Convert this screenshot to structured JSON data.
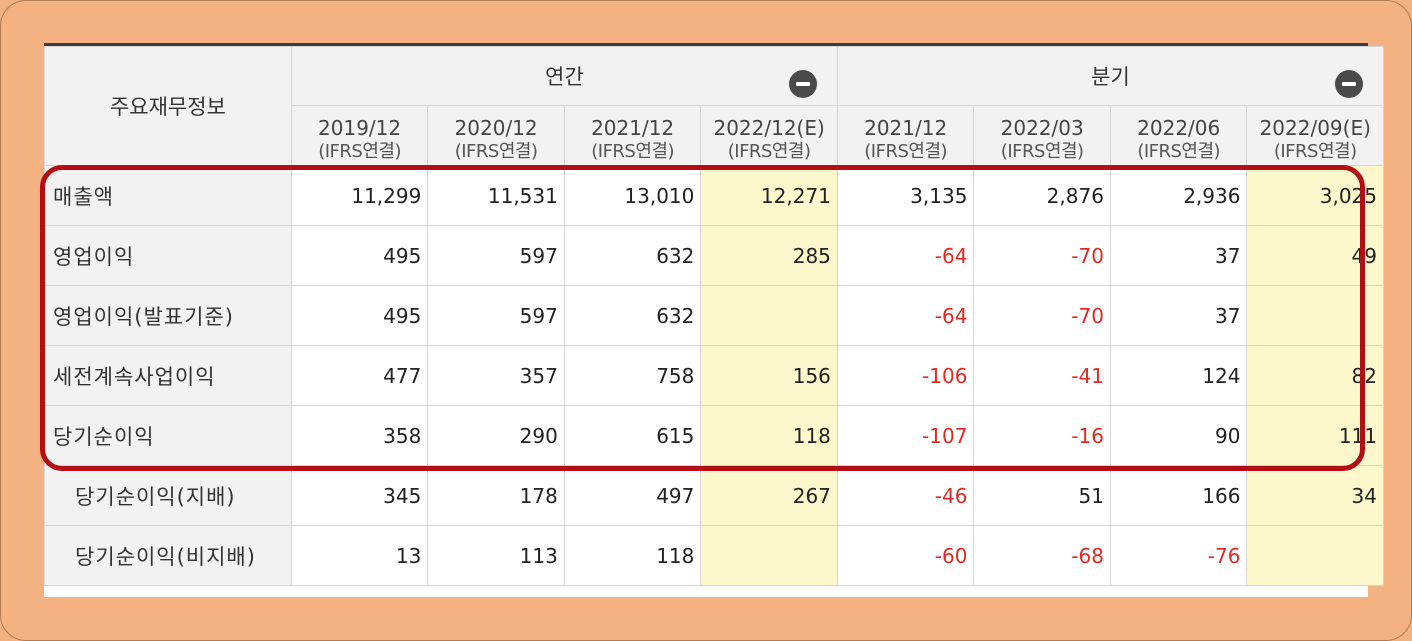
{
  "header": {
    "row_label_title": "주요재무정보",
    "groups": [
      {
        "label": "연간"
      },
      {
        "label": "분기"
      }
    ],
    "periods": [
      {
        "date": "2019/12",
        "basis": "(IFRS연결)"
      },
      {
        "date": "2020/12",
        "basis": "(IFRS연결)"
      },
      {
        "date": "2021/12",
        "basis": "(IFRS연결)"
      },
      {
        "date": "2022/12(E)",
        "basis": "(IFRS연결)"
      },
      {
        "date": "2021/12",
        "basis": "(IFRS연결)"
      },
      {
        "date": "2022/03",
        "basis": "(IFRS연결)"
      },
      {
        "date": "2022/06",
        "basis": "(IFRS연결)"
      },
      {
        "date": "2022/09(E)",
        "basis": "(IFRS연결)"
      }
    ]
  },
  "rows": [
    {
      "label": "매출액",
      "values": [
        "11,299",
        "11,531",
        "13,010",
        "12,271",
        "3,135",
        "2,876",
        "2,936",
        "3,025"
      ]
    },
    {
      "label": "영업이익",
      "values": [
        "495",
        "597",
        "632",
        "285",
        "-64",
        "-70",
        "37",
        "49"
      ]
    },
    {
      "label": "영업이익(발표기준)",
      "values": [
        "495",
        "597",
        "632",
        "",
        "-64",
        "-70",
        "37",
        ""
      ]
    },
    {
      "label": "세전계속사업이익",
      "values": [
        "477",
        "357",
        "758",
        "156",
        "-106",
        "-41",
        "124",
        "82"
      ]
    },
    {
      "label": "당기순이익",
      "values": [
        "358",
        "290",
        "615",
        "118",
        "-107",
        "-16",
        "90",
        "111"
      ]
    },
    {
      "label": "당기순이익(지배)",
      "values": [
        "345",
        "178",
        "497",
        "267",
        "-46",
        "51",
        "166",
        "34"
      ]
    },
    {
      "label": "당기순이익(비지배)",
      "values": [
        "13",
        "113",
        "118",
        "",
        "-60",
        "-68",
        "-76",
        ""
      ]
    }
  ],
  "colors": {
    "negative": "#e02a24",
    "estimate_cell": "#fdf8cc",
    "highlight_border": "#b30e13",
    "background": "#f4b283"
  },
  "icons": {
    "collapse": "minus-circle-icon"
  }
}
